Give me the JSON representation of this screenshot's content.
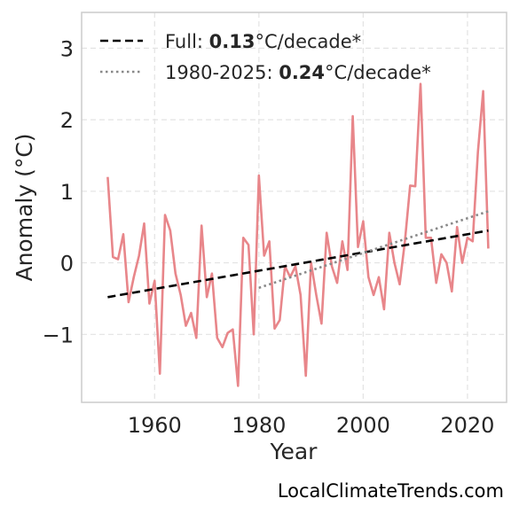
{
  "chart_data": {
    "type": "line",
    "xlabel": "Year",
    "ylabel": "Anomaly (°C)",
    "xlim": [
      1946,
      2027.5
    ],
    "ylim": [
      -1.95,
      3.5
    ],
    "xticks": [
      1960,
      1980,
      2000,
      2020
    ],
    "xtick_labels": [
      "1960",
      "1980",
      "2000",
      "2020"
    ],
    "yticks": [
      -1,
      0,
      1,
      2,
      3
    ],
    "ytick_labels": [
      "−1",
      "0",
      "1",
      "2",
      "3"
    ],
    "grid": true,
    "legend_placement": "top-left",
    "series": [
      {
        "kind": "anomaly",
        "color": "#e8868a",
        "x": [
          1951,
          1952,
          1953,
          1954,
          1955,
          1956,
          1957,
          1958,
          1959,
          1960,
          1961,
          1962,
          1963,
          1964,
          1965,
          1966,
          1967,
          1968,
          1969,
          1970,
          1971,
          1972,
          1973,
          1974,
          1975,
          1976,
          1977,
          1978,
          1979,
          1980,
          1981,
          1982,
          1983,
          1984,
          1985,
          1986,
          1987,
          1988,
          1989,
          1990,
          1991,
          1992,
          1993,
          1994,
          1995,
          1996,
          1997,
          1998,
          1999,
          2000,
          2001,
          2002,
          2003,
          2004,
          2005,
          2006,
          2007,
          2008,
          2009,
          2010,
          2011,
          2012,
          2013,
          2014,
          2015,
          2016,
          2017,
          2018,
          2019,
          2020,
          2021,
          2022,
          2023,
          2024
        ],
        "y": [
          1.2,
          0.08,
          0.05,
          0.4,
          -0.55,
          -0.2,
          0.1,
          0.55,
          -0.57,
          -0.25,
          -1.55,
          0.67,
          0.45,
          -0.15,
          -0.45,
          -0.88,
          -0.7,
          -1.05,
          0.52,
          -0.48,
          -0.15,
          -1.05,
          -1.18,
          -0.98,
          -0.93,
          -1.72,
          0.35,
          0.25,
          -1.0,
          1.22,
          0.1,
          0.3,
          -0.92,
          -0.8,
          -0.05,
          -0.2,
          -0.05,
          -0.45,
          -1.58,
          0.0,
          -0.45,
          -0.85,
          0.42,
          -0.05,
          -0.28,
          0.3,
          -0.1,
          2.05,
          0.22,
          0.58,
          -0.2,
          -0.45,
          -0.2,
          -0.65,
          0.42,
          0.0,
          -0.3,
          0.3,
          1.08,
          1.07,
          2.5,
          0.35,
          0.35,
          -0.28,
          0.12,
          0.0,
          -0.4,
          0.5,
          0.0,
          0.35,
          0.3,
          1.55,
          2.4,
          0.2
        ]
      },
      {
        "kind": "full-trend",
        "name": "Full",
        "color": "#000000",
        "x": [
          1951,
          2024
        ],
        "y": [
          -0.48,
          0.45
        ]
      },
      {
        "kind": "recent-trend",
        "name": "1980-2025",
        "color": "#888888",
        "x": [
          1980,
          2024
        ],
        "y": [
          -0.35,
          0.72
        ]
      }
    ],
    "legend": [
      {
        "prefix": "Full: ",
        "value": "0.13",
        "unit": "°C/decade*"
      },
      {
        "prefix": "1980-2025: ",
        "value": "0.24",
        "unit": "°C/decade*"
      }
    ]
  },
  "credit": "LocalClimateTrends.com"
}
